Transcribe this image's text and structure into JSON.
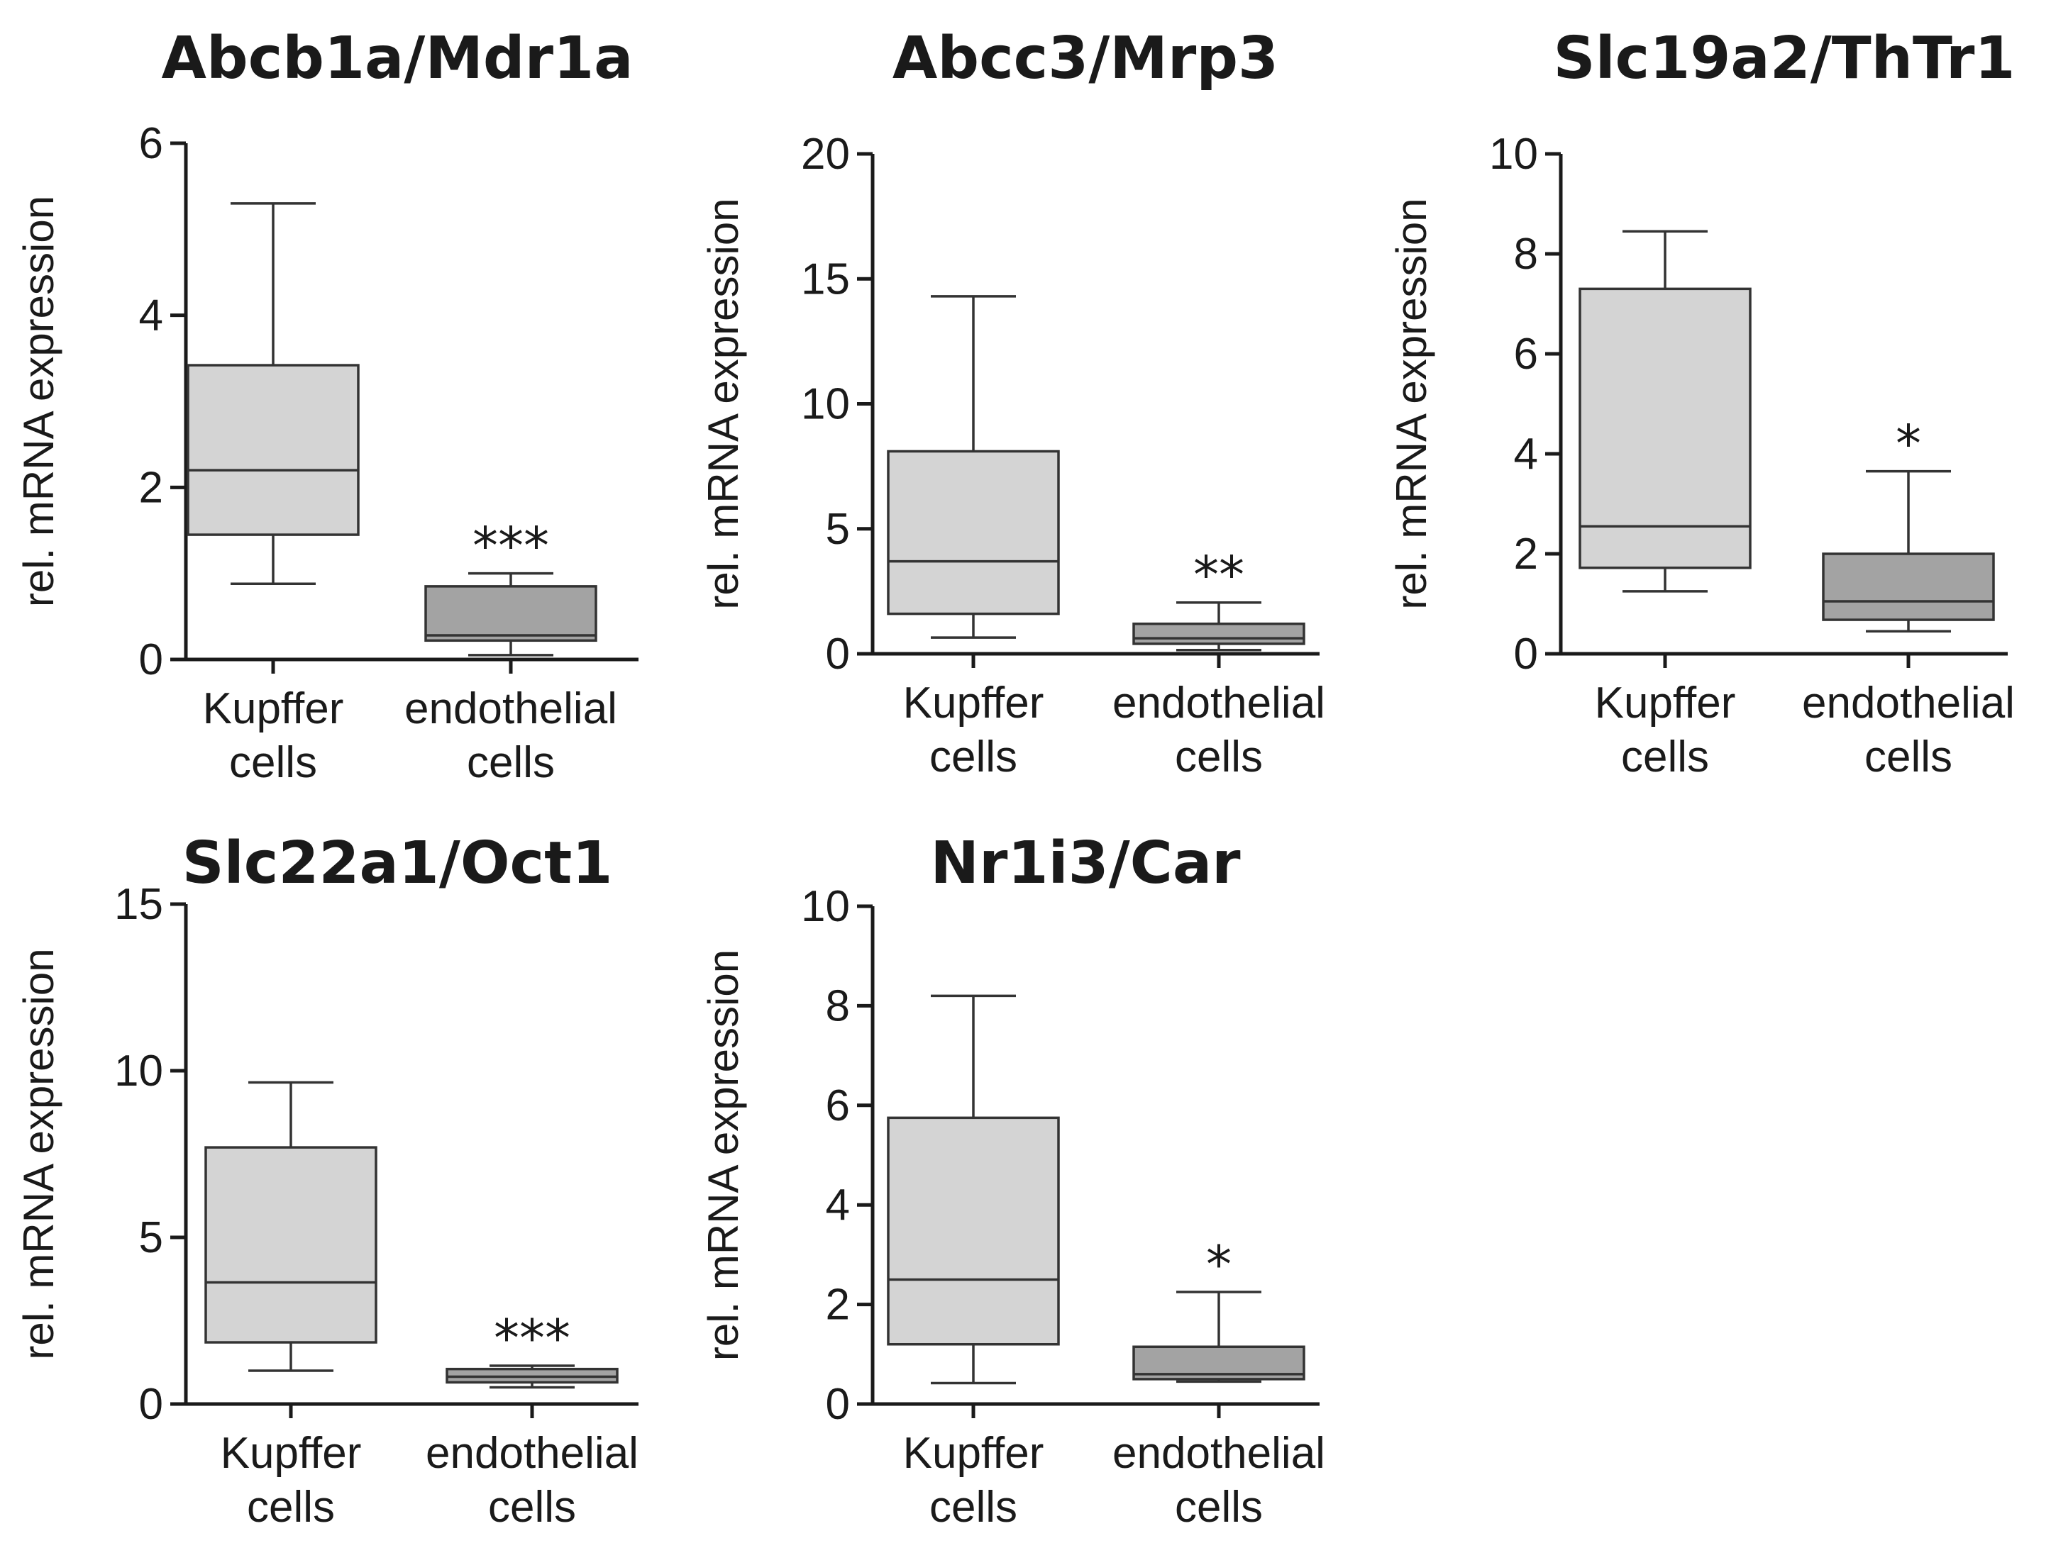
{
  "chart_data": [
    {
      "type": "box",
      "title": "Abcb1a/Mdr1a",
      "ylabel": "rel. mRNA expression",
      "ylim": [
        0,
        6
      ],
      "yticks": [
        "0",
        "2",
        "4",
        "6"
      ],
      "categories": [
        [
          "Kupffer",
          "cells"
        ],
        [
          "endothelial",
          "cells"
        ]
      ],
      "colors": [
        "#d4d4d4",
        "#a3a3a3"
      ],
      "boxes": [
        {
          "min": 0.88,
          "q1": 1.45,
          "median": 2.2,
          "q3": 3.42,
          "max": 5.3
        },
        {
          "min": 0.05,
          "q1": 0.22,
          "median": 0.28,
          "q3": 0.85,
          "max": 1.0
        }
      ],
      "significance": [
        "",
        "***"
      ]
    },
    {
      "type": "box",
      "title": "Abcc3/Mrp3",
      "ylabel": "rel. mRNA expression",
      "ylim": [
        0,
        20
      ],
      "yticks": [
        "0",
        "5",
        "10",
        "15",
        "20"
      ],
      "categories": [
        [
          "Kupffer",
          "cells"
        ],
        [
          "endothelial",
          "cells"
        ]
      ],
      "colors": [
        "#d4d4d4",
        "#a3a3a3"
      ],
      "boxes": [
        {
          "min": 0.65,
          "q1": 1.6,
          "median": 3.7,
          "q3": 8.1,
          "max": 14.3
        },
        {
          "min": 0.15,
          "q1": 0.4,
          "median": 0.62,
          "q3": 1.2,
          "max": 2.05
        }
      ],
      "significance": [
        "",
        "**"
      ]
    },
    {
      "type": "box",
      "title": "Slc19a2/ThTr1",
      "ylabel": "rel. mRNA expression",
      "ylim": [
        0,
        10
      ],
      "yticks": [
        "0",
        "2",
        "4",
        "6",
        "8",
        "10"
      ],
      "categories": [
        [
          "Kupffer",
          "cells"
        ],
        [
          "endothelial",
          "cells"
        ]
      ],
      "colors": [
        "#d4d4d4",
        "#a3a3a3"
      ],
      "boxes": [
        {
          "min": 1.25,
          "q1": 1.72,
          "median": 2.55,
          "q3": 7.3,
          "max": 8.45
        },
        {
          "min": 0.45,
          "q1": 0.68,
          "median": 1.05,
          "q3": 2.0,
          "max": 3.65
        }
      ],
      "significance": [
        "",
        "*"
      ]
    },
    {
      "type": "box",
      "title": "Slc22a1/Oct1",
      "ylabel": "rel. mRNA expression",
      "ylim": [
        0,
        15
      ],
      "yticks": [
        "0",
        "5",
        "10",
        "15"
      ],
      "categories": [
        [
          "Kupffer",
          "cells"
        ],
        [
          "endothelial",
          "cells"
        ]
      ],
      "colors": [
        "#d4d4d4",
        "#a3a3a3"
      ],
      "boxes": [
        {
          "min": 1.0,
          "q1": 1.85,
          "median": 3.65,
          "q3": 7.7,
          "max": 9.65
        },
        {
          "min": 0.5,
          "q1": 0.65,
          "median": 0.82,
          "q3": 1.05,
          "max": 1.15
        }
      ],
      "significance": [
        "",
        "***"
      ]
    },
    {
      "type": "box",
      "title": "Nr1i3/Car",
      "ylabel": "rel. mRNA expression",
      "ylim": [
        0,
        10
      ],
      "yticks": [
        "0",
        "2",
        "4",
        "6",
        "8",
        "10"
      ],
      "categories": [
        [
          "Kupffer",
          "cells"
        ],
        [
          "endothelial",
          "cells"
        ]
      ],
      "colors": [
        "#d4d4d4",
        "#a3a3a3"
      ],
      "boxes": [
        {
          "min": 0.42,
          "q1": 1.2,
          "median": 2.5,
          "q3": 5.75,
          "max": 8.2
        },
        {
          "min": 0.45,
          "q1": 0.5,
          "median": 0.6,
          "q3": 1.15,
          "max": 2.25
        }
      ],
      "significance": [
        "",
        "*"
      ]
    }
  ]
}
